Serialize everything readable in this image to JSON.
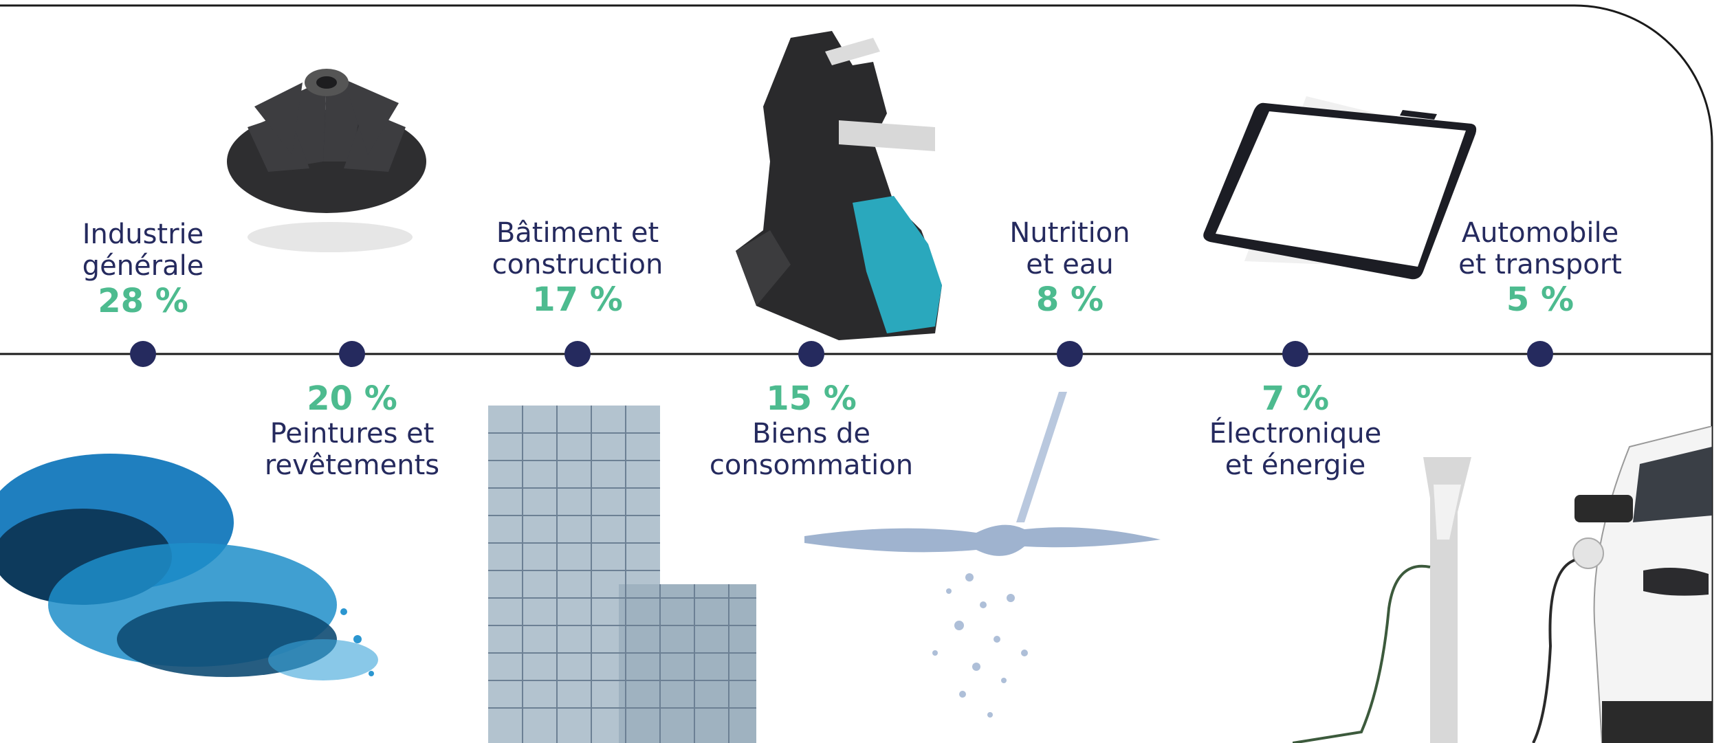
{
  "colors": {
    "navy": "#252a5e",
    "green": "#4dbb8f",
    "line": "#1a1a1a"
  },
  "segments": [
    {
      "name": "Industrie\ngénérale",
      "value": "28 %",
      "share": 28,
      "position": "top",
      "icon": "turbine-impeller-icon"
    },
    {
      "name": "Peintures et\nrevêtements",
      "value": "20 %",
      "share": 20,
      "position": "bottom",
      "icon": "blue-powder-icon"
    },
    {
      "name": "Bâtiment et\nconstruction",
      "value": "17 %",
      "share": 17,
      "position": "top",
      "icon": "office-building-icon"
    },
    {
      "name": "Biens de\nconsommation",
      "value": "15 %",
      "share": 15,
      "position": "bottom",
      "icon": "ski-boot-icon"
    },
    {
      "name": "Nutrition\net eau",
      "value": "8 %",
      "share": 8,
      "position": "top",
      "icon": "water-splash-icon"
    },
    {
      "name": "Électronique\net énergie",
      "value": "7 %",
      "share": 7,
      "position": "bottom",
      "icon": "smartphone-icon"
    },
    {
      "name": "Automobile\net transport",
      "value": "5 %",
      "share": 5,
      "position": "top",
      "icon": "electric-car-icon"
    }
  ]
}
